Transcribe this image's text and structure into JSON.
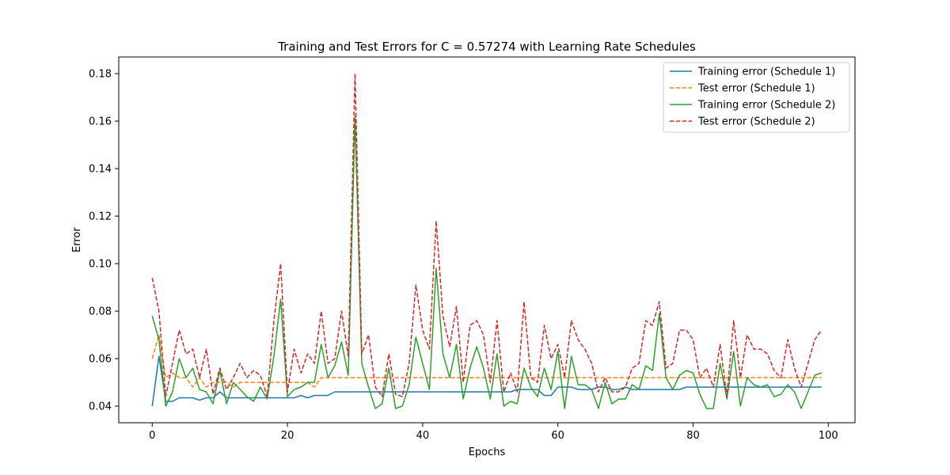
{
  "chart_data": {
    "type": "line",
    "title": "Training and Test Errors for C = 0.57274 with Learning Rate Schedules",
    "xlabel": "Epochs",
    "ylabel": "Error",
    "xlim": [
      -4.95,
      103.95
    ],
    "ylim": [
      0.033,
      0.187
    ],
    "xticks": [
      0,
      20,
      40,
      60,
      80,
      100
    ],
    "yticks": [
      0.04,
      0.06,
      0.08,
      0.1,
      0.12,
      0.14,
      0.16,
      0.18
    ],
    "xtick_labels": [
      "0",
      "20",
      "40",
      "60",
      "80",
      "100"
    ],
    "ytick_labels": [
      "0.04",
      "0.06",
      "0.08",
      "0.10",
      "0.12",
      "0.14",
      "0.16",
      "0.18"
    ],
    "grid": false,
    "legend_position": "top-right",
    "series": [
      {
        "name": "Training error (Schedule 1)",
        "color": "#1f77b4",
        "style": "solid",
        "values": [
          0.04,
          0.061,
          0.042,
          0.042,
          0.0435,
          0.0435,
          0.0435,
          0.0425,
          0.0435,
          0.0435,
          0.046,
          0.0435,
          0.0435,
          0.0435,
          0.0435,
          0.0435,
          0.0435,
          0.0435,
          0.0435,
          0.0435,
          0.0435,
          0.0435,
          0.0445,
          0.0435,
          0.0445,
          0.0445,
          0.0445,
          0.046,
          0.046,
          0.046,
          0.046,
          0.046,
          0.046,
          0.046,
          0.046,
          0.046,
          0.046,
          0.046,
          0.046,
          0.046,
          0.046,
          0.046,
          0.046,
          0.046,
          0.046,
          0.046,
          0.046,
          0.046,
          0.046,
          0.046,
          0.046,
          0.046,
          0.046,
          0.046,
          0.047,
          0.047,
          0.047,
          0.047,
          0.0445,
          0.0445,
          0.048,
          0.048,
          0.048,
          0.047,
          0.047,
          0.047,
          0.048,
          0.048,
          0.047,
          0.047,
          0.048,
          0.047,
          0.047,
          0.047,
          0.047,
          0.047,
          0.047,
          0.047,
          0.047,
          0.048,
          0.048,
          0.048,
          0.048,
          0.048,
          0.048,
          0.048,
          0.048,
          0.048,
          0.048,
          0.048,
          0.048,
          0.048,
          0.048,
          0.048,
          0.048,
          0.048,
          0.048,
          0.048,
          0.048,
          0.048
        ]
      },
      {
        "name": "Test error (Schedule 1)",
        "color": "#ff7f0e",
        "style": "dashed",
        "values": [
          0.06,
          0.07,
          0.052,
          0.054,
          0.052,
          0.052,
          0.048,
          0.052,
          0.048,
          0.05,
          0.05,
          0.05,
          0.048,
          0.05,
          0.05,
          0.05,
          0.05,
          0.05,
          0.05,
          0.05,
          0.05,
          0.05,
          0.05,
          0.05,
          0.048,
          0.052,
          0.052,
          0.052,
          0.052,
          0.052,
          0.052,
          0.052,
          0.052,
          0.052,
          0.052,
          0.052,
          0.052,
          0.052,
          0.052,
          0.052,
          0.052,
          0.052,
          0.052,
          0.052,
          0.052,
          0.052,
          0.052,
          0.052,
          0.052,
          0.052,
          0.052,
          0.052,
          0.052,
          0.052,
          0.052,
          0.052,
          0.052,
          0.052,
          0.052,
          0.052,
          0.052,
          0.052,
          0.052,
          0.052,
          0.052,
          0.052,
          0.052,
          0.052,
          0.052,
          0.052,
          0.052,
          0.052,
          0.052,
          0.052,
          0.052,
          0.052,
          0.052,
          0.052,
          0.052,
          0.052,
          0.052,
          0.052,
          0.052,
          0.052,
          0.052,
          0.052,
          0.052,
          0.052,
          0.052,
          0.052,
          0.052,
          0.052,
          0.052,
          0.052,
          0.052,
          0.052,
          0.052,
          0.052,
          0.052,
          0.052
        ]
      },
      {
        "name": "Training error (Schedule 2)",
        "color": "#2ca02c",
        "style": "solid",
        "values": [
          0.078,
          0.068,
          0.04,
          0.046,
          0.06,
          0.052,
          0.056,
          0.047,
          0.046,
          0.041,
          0.055,
          0.041,
          0.05,
          0.047,
          0.044,
          0.042,
          0.048,
          0.043,
          0.061,
          0.085,
          0.044,
          0.047,
          0.048,
          0.05,
          0.05,
          0.066,
          0.052,
          0.057,
          0.067,
          0.053,
          0.162,
          0.058,
          0.048,
          0.039,
          0.041,
          0.056,
          0.039,
          0.04,
          0.049,
          0.069,
          0.058,
          0.047,
          0.098,
          0.062,
          0.052,
          0.066,
          0.043,
          0.056,
          0.065,
          0.056,
          0.043,
          0.062,
          0.04,
          0.042,
          0.041,
          0.056,
          0.048,
          0.044,
          0.056,
          0.047,
          0.063,
          0.039,
          0.061,
          0.049,
          0.049,
          0.047,
          0.039,
          0.05,
          0.041,
          0.043,
          0.043,
          0.049,
          0.047,
          0.057,
          0.055,
          0.079,
          0.052,
          0.047,
          0.053,
          0.055,
          0.054,
          0.045,
          0.039,
          0.039,
          0.058,
          0.043,
          0.063,
          0.04,
          0.052,
          0.049,
          0.048,
          0.049,
          0.044,
          0.045,
          0.049,
          0.046,
          0.039,
          0.046,
          0.053,
          0.054
        ]
      },
      {
        "name": "Test error (Schedule 2)",
        "color": "#d62728",
        "style": "dashed",
        "values": [
          0.094,
          0.08,
          0.044,
          0.058,
          0.072,
          0.062,
          0.064,
          0.052,
          0.064,
          0.045,
          0.056,
          0.047,
          0.052,
          0.058,
          0.052,
          0.055,
          0.053,
          0.044,
          0.076,
          0.1,
          0.046,
          0.064,
          0.054,
          0.062,
          0.058,
          0.08,
          0.058,
          0.06,
          0.08,
          0.061,
          0.18,
          0.062,
          0.07,
          0.048,
          0.044,
          0.062,
          0.045,
          0.044,
          0.058,
          0.091,
          0.072,
          0.064,
          0.118,
          0.078,
          0.065,
          0.082,
          0.05,
          0.074,
          0.076,
          0.07,
          0.05,
          0.076,
          0.046,
          0.054,
          0.046,
          0.084,
          0.052,
          0.05,
          0.074,
          0.06,
          0.066,
          0.052,
          0.076,
          0.068,
          0.064,
          0.058,
          0.046,
          0.052,
          0.046,
          0.046,
          0.048,
          0.056,
          0.058,
          0.076,
          0.074,
          0.084,
          0.056,
          0.058,
          0.072,
          0.072,
          0.068,
          0.052,
          0.056,
          0.048,
          0.066,
          0.044,
          0.076,
          0.052,
          0.07,
          0.064,
          0.064,
          0.062,
          0.055,
          0.052,
          0.068,
          0.056,
          0.048,
          0.058,
          0.068,
          0.072
        ]
      }
    ]
  }
}
